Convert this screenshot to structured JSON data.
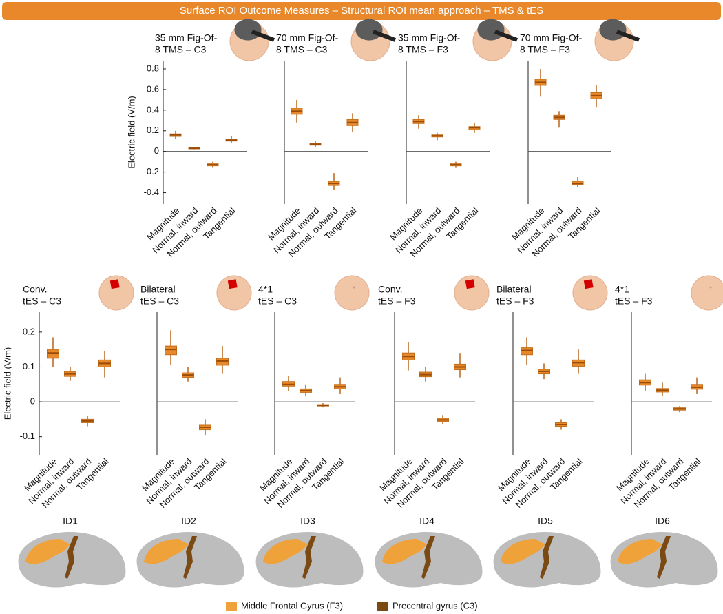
{
  "header": {
    "title": "Surface ROI Outcome Measures – Structural ROI mean approach – TMS & tES"
  },
  "chart_data": [
    {
      "type": "box",
      "title": [
        "35 mm Fig-Of-",
        "8 TMS – C3"
      ],
      "y_label": "Electric field (V/m)",
      "color": "#e5892a",
      "categories": [
        "Magnitude",
        "Normal, inward",
        "Normal, outward",
        "Tangential"
      ],
      "boxes": [
        {
          "low": 0.12,
          "q1": 0.145,
          "median": 0.16,
          "q3": 0.17,
          "high": 0.2
        },
        {
          "low": 0.02,
          "q1": 0.025,
          "median": 0.03,
          "q3": 0.035,
          "high": 0.04
        },
        {
          "low": -0.16,
          "q1": -0.14,
          "median": -0.13,
          "q3": -0.12,
          "high": -0.1
        },
        {
          "low": 0.08,
          "q1": 0.1,
          "median": 0.11,
          "q3": 0.12,
          "high": 0.15
        }
      ],
      "ylim": [
        -0.51,
        0.88
      ],
      "yticks": [
        -0.4,
        -0.2,
        0,
        0.2,
        0.4,
        0.6,
        0.8
      ],
      "zero_line": true
    },
    {
      "type": "box",
      "title": [
        "70 mm Fig-Of-",
        "8 TMS – C3"
      ],
      "color": "#e5892a",
      "categories": [
        "Magnitude",
        "Normal, inward",
        "Normal, outward",
        "Tangential"
      ],
      "boxes": [
        {
          "low": 0.28,
          "q1": 0.36,
          "median": 0.39,
          "q3": 0.42,
          "high": 0.5
        },
        {
          "low": 0.04,
          "q1": 0.06,
          "median": 0.07,
          "q3": 0.08,
          "high": 0.1
        },
        {
          "low": -0.37,
          "q1": -0.33,
          "median": -0.31,
          "q3": -0.29,
          "high": -0.21
        },
        {
          "low": 0.19,
          "q1": 0.25,
          "median": 0.28,
          "q3": 0.31,
          "high": 0.37
        }
      ],
      "ylim": [
        -0.51,
        0.88
      ],
      "zero_line": true
    },
    {
      "type": "box",
      "title": [
        "35 mm Fig-Of-",
        "8 TMS – F3"
      ],
      "color": "#e5892a",
      "categories": [
        "Magnitude",
        "Normal, inward",
        "Normal, outward",
        "Tangential"
      ],
      "boxes": [
        {
          "low": 0.22,
          "q1": 0.27,
          "median": 0.29,
          "q3": 0.31,
          "high": 0.35
        },
        {
          "low": 0.11,
          "q1": 0.14,
          "median": 0.15,
          "q3": 0.16,
          "high": 0.18
        },
        {
          "low": -0.16,
          "q1": -0.14,
          "median": -0.13,
          "q3": -0.12,
          "high": -0.1
        },
        {
          "low": 0.18,
          "q1": 0.21,
          "median": 0.23,
          "q3": 0.24,
          "high": 0.28
        }
      ],
      "ylim": [
        -0.51,
        0.88
      ],
      "zero_line": true
    },
    {
      "type": "box",
      "title": [
        "70 mm Fig-Of-",
        "8 TMS – F3"
      ],
      "color": "#e5892a",
      "categories": [
        "Magnitude",
        "Normal, inward",
        "Normal, outward",
        "Tangential"
      ],
      "boxes": [
        {
          "low": 0.53,
          "q1": 0.64,
          "median": 0.67,
          "q3": 0.7,
          "high": 0.8
        },
        {
          "low": 0.23,
          "q1": 0.31,
          "median": 0.33,
          "q3": 0.35,
          "high": 0.39
        },
        {
          "low": -0.35,
          "q1": -0.32,
          "median": -0.31,
          "q3": -0.29,
          "high": -0.25
        },
        {
          "low": 0.43,
          "q1": 0.51,
          "median": 0.54,
          "q3": 0.57,
          "high": 0.64
        }
      ],
      "ylim": [
        -0.51,
        0.88
      ],
      "zero_line": true
    },
    {
      "type": "box",
      "title": [
        "Conv.",
        "tES – C3"
      ],
      "y_label": "Electric field (V/m)",
      "color": "#e5892a",
      "categories": [
        "Magnitude",
        "Normal, inward",
        "Normal, outward",
        "Tangential"
      ],
      "boxes": [
        {
          "low": 0.1,
          "q1": 0.125,
          "median": 0.14,
          "q3": 0.15,
          "high": 0.185
        },
        {
          "low": 0.06,
          "q1": 0.073,
          "median": 0.08,
          "q3": 0.087,
          "high": 0.1
        },
        {
          "low": -0.07,
          "q1": -0.06,
          "median": -0.055,
          "q3": -0.05,
          "high": -0.04
        },
        {
          "low": 0.07,
          "q1": 0.1,
          "median": 0.11,
          "q3": 0.12,
          "high": 0.145
        }
      ],
      "ylim": [
        -0.152,
        0.257
      ],
      "yticks": [
        -0.1,
        0,
        0.1,
        0.2
      ],
      "zero_line": true
    },
    {
      "type": "box",
      "title": [
        "Bilateral",
        "tES – C3"
      ],
      "color": "#e5892a",
      "categories": [
        "Magnitude",
        "Normal, inward",
        "Normal, outward",
        "Tangential"
      ],
      "boxes": [
        {
          "low": 0.105,
          "q1": 0.135,
          "median": 0.15,
          "q3": 0.16,
          "high": 0.205
        },
        {
          "low": 0.058,
          "q1": 0.07,
          "median": 0.077,
          "q3": 0.083,
          "high": 0.1
        },
        {
          "low": -0.095,
          "q1": -0.08,
          "median": -0.073,
          "q3": -0.067,
          "high": -0.05
        },
        {
          "low": 0.08,
          "q1": 0.105,
          "median": 0.117,
          "q3": 0.125,
          "high": 0.16
        }
      ],
      "ylim": [
        -0.152,
        0.257
      ],
      "zero_line": true
    },
    {
      "type": "box",
      "title": [
        "4*1",
        "tES – C3"
      ],
      "color": "#e5892a",
      "categories": [
        "Magnitude",
        "Normal, inward",
        "Normal, outward",
        "Tangential"
      ],
      "boxes": [
        {
          "low": 0.03,
          "q1": 0.045,
          "median": 0.05,
          "q3": 0.058,
          "high": 0.075
        },
        {
          "low": 0.018,
          "q1": 0.027,
          "median": 0.032,
          "q3": 0.037,
          "high": 0.05
        },
        {
          "low": -0.016,
          "q1": -0.012,
          "median": -0.01,
          "q3": -0.008,
          "high": -0.004
        },
        {
          "low": 0.022,
          "q1": 0.037,
          "median": 0.043,
          "q3": 0.05,
          "high": 0.07
        }
      ],
      "ylim": [
        -0.152,
        0.257
      ],
      "zero_line": true
    },
    {
      "type": "box",
      "title": [
        "Conv.",
        "tES – F3"
      ],
      "color": "#e5892a",
      "categories": [
        "Magnitude",
        "Normal, inward",
        "Normal, outward",
        "Tangential"
      ],
      "boxes": [
        {
          "low": 0.09,
          "q1": 0.12,
          "median": 0.13,
          "q3": 0.14,
          "high": 0.17
        },
        {
          "low": 0.058,
          "q1": 0.072,
          "median": 0.078,
          "q3": 0.085,
          "high": 0.1
        },
        {
          "low": -0.065,
          "q1": -0.056,
          "median": -0.052,
          "q3": -0.047,
          "high": -0.038
        },
        {
          "low": 0.07,
          "q1": 0.092,
          "median": 0.1,
          "q3": 0.108,
          "high": 0.14
        }
      ],
      "ylim": [
        -0.152,
        0.257
      ],
      "zero_line": true
    },
    {
      "type": "box",
      "title": [
        "Bilateral",
        "tES – F3"
      ],
      "color": "#e5892a",
      "categories": [
        "Magnitude",
        "Normal, inward",
        "Normal, outward",
        "Tangential"
      ],
      "boxes": [
        {
          "low": 0.105,
          "q1": 0.135,
          "median": 0.147,
          "q3": 0.155,
          "high": 0.185
        },
        {
          "low": 0.065,
          "q1": 0.08,
          "median": 0.087,
          "q3": 0.093,
          "high": 0.11
        },
        {
          "low": -0.08,
          "q1": -0.07,
          "median": -0.065,
          "q3": -0.06,
          "high": -0.05
        },
        {
          "low": 0.08,
          "q1": 0.102,
          "median": 0.112,
          "q3": 0.12,
          "high": 0.15
        }
      ],
      "ylim": [
        -0.152,
        0.257
      ],
      "zero_line": true
    },
    {
      "type": "box",
      "title": [
        "4*1",
        "tES – F3"
      ],
      "color": "#e5892a",
      "categories": [
        "Magnitude",
        "Normal, inward",
        "Normal, outward",
        "Tangential"
      ],
      "boxes": [
        {
          "low": 0.03,
          "q1": 0.048,
          "median": 0.055,
          "q3": 0.063,
          "high": 0.08
        },
        {
          "low": 0.018,
          "q1": 0.028,
          "median": 0.033,
          "q3": 0.038,
          "high": 0.055
        },
        {
          "low": -0.03,
          "q1": -0.024,
          "median": -0.02,
          "q3": -0.017,
          "high": -0.012
        },
        {
          "low": 0.022,
          "q1": 0.036,
          "median": 0.042,
          "q3": 0.05,
          "high": 0.07
        }
      ],
      "ylim": [
        -0.152,
        0.257
      ],
      "zero_line": true
    }
  ],
  "brains": {
    "labels": [
      "ID1",
      "ID2",
      "ID3",
      "ID4",
      "ID5",
      "ID6"
    ]
  },
  "legend": {
    "items": [
      {
        "label": "Middle Frontal Gyrus (F3)",
        "color": "#f0a23a"
      },
      {
        "label": "Precentral gyrus (C3)",
        "color": "#7a4a12"
      }
    ]
  }
}
